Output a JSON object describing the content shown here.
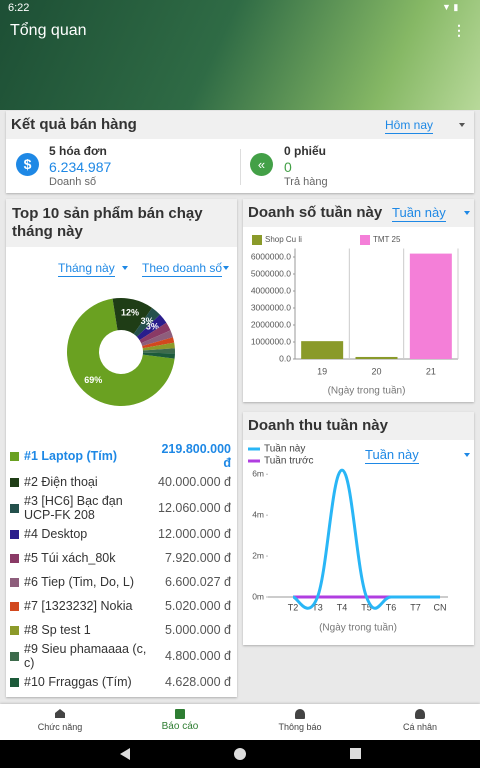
{
  "status_bar": {
    "time": "6:22"
  },
  "header": {
    "title": "Tổng quan"
  },
  "sales_summary": {
    "title": "Kết quả bán hàng",
    "period": "Hôm nay",
    "orders": {
      "count": "5 hóa đơn",
      "amount": "6.234.987",
      "label": "Doanh số"
    },
    "returns": {
      "count": "0 phiếu",
      "amount": "0",
      "label": "Trả hàng"
    }
  },
  "top_products": {
    "title": "Top 10 sản phẩm bán chạy tháng này",
    "period": "Tháng này",
    "sort": "Theo doanh số",
    "items": [
      {
        "name": "#1 Laptop (Tím)",
        "value": "219.800.000 đ"
      },
      {
        "name": "#2 Điện thoại",
        "value": "40.000.000 đ"
      },
      {
        "name": "#3 [HC6] Bạc đạn UCP-FK 208",
        "value": "12.060.000 đ"
      },
      {
        "name": "#4 Desktop",
        "value": "12.000.000 đ"
      },
      {
        "name": "#5 Túi xách_80k",
        "value": "7.920.000 đ"
      },
      {
        "name": "#6 Tiep (Tim, Do, L)",
        "value": "6.600.027 đ"
      },
      {
        "name": "#7 [1323232] Nokia",
        "value": "5.020.000 đ"
      },
      {
        "name": "#8 Sp test 1",
        "value": "5.000.000 đ"
      },
      {
        "name": "#9 Sieu phamaaaa (c, c)",
        "value": "4.800.000 đ"
      },
      {
        "name": "#10 Frraggas (Tím)",
        "value": "4.628.000 đ"
      }
    ]
  },
  "weekly_sales": {
    "title": "Doanh số tuần này",
    "period": "Tuần này"
  },
  "weekly_revenue": {
    "title": "Doanh thu tuần này",
    "period": "Tuần này"
  },
  "chart_data": [
    {
      "type": "pie",
      "values": [
        69,
        12,
        3,
        3,
        2.5,
        2.1,
        1.6,
        1.6,
        1.5,
        1.5
      ],
      "value_labels": [
        "69%",
        "12%",
        "3%",
        "3%",
        null,
        null,
        null,
        null,
        null,
        null
      ],
      "colors": [
        "#6aa121",
        "#1f3d16",
        "#24504c",
        "#2a1d8c",
        "#8a3a66",
        "#8e5e7c",
        "#d2481e",
        "#8c9a2a",
        "#3d6b4c",
        "#1c5a3a"
      ]
    },
    {
      "type": "bar",
      "categories": [
        "19",
        "20",
        "21"
      ],
      "series": [
        {
          "name": "Shop Cu li",
          "color": "#8a9a2a",
          "values": [
            1050000,
            120000,
            null
          ]
        },
        {
          "name": "TMT 25",
          "color": "#f47fd8",
          "values": [
            null,
            null,
            6200000
          ]
        }
      ],
      "x_label": "(Ngày trong tuần)",
      "ylim": [
        0,
        6500000
      ],
      "yticks": [
        {
          "value": 0,
          "label": "0.0"
        },
        {
          "value": 1000000,
          "label": "1000000.0"
        },
        {
          "value": 2000000,
          "label": "2000000.0"
        },
        {
          "value": 3000000,
          "label": "3000000.0"
        },
        {
          "value": 4000000,
          "label": "4000000.0"
        },
        {
          "value": 5000000,
          "label": "5000000.0"
        },
        {
          "value": 6000000,
          "label": "6000000.0"
        }
      ]
    },
    {
      "type": "line",
      "categories": [
        "T2",
        "T3",
        "T4",
        "T5",
        "T6",
        "T7",
        "CN"
      ],
      "series": [
        {
          "name": "Tuần này",
          "color": "#29b6f6",
          "values": [
            0,
            0,
            6200000,
            0,
            0,
            0,
            0
          ]
        },
        {
          "name": "Tuần trước",
          "color": "#b03ee0",
          "values": [
            0,
            0,
            0,
            0,
            0,
            0,
            0
          ]
        }
      ],
      "x_label": "(Ngày trong tuần)",
      "ylim": [
        0,
        6500000
      ],
      "yticks": [
        {
          "value": 0,
          "label": "0m"
        },
        {
          "value": 2000000,
          "label": "2m"
        },
        {
          "value": 4000000,
          "label": "4m"
        },
        {
          "value": 6000000,
          "label": "6m"
        }
      ]
    }
  ]
}
